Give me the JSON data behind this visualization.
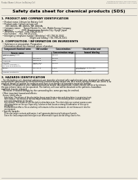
{
  "bg_color": "#f0ece0",
  "header_left": "Product Name: Lithium Ion Battery Cell",
  "header_right": "Substance Number: 990-049-00010\nEstablishment / Revision: Dec.7.2009",
  "main_title": "Safety data sheet for chemical products (SDS)",
  "section1_title": "1. PRODUCT AND COMPANY IDENTIFICATION",
  "section1_lines": [
    " • Product name: Lithium Ion Battery Cell",
    " • Product code: Cylindrical-type cell",
    "      ISR 18650U, ISR 18650L, ISR 18650A",
    " • Company name:     Sanyo Electric Co., Ltd., Mobile Energy Company",
    " • Address:              2001  Kamitosawa, Sumoto-City, Hyogo, Japan",
    " • Telephone number:   +81-799-26-4111",
    " • Fax number:   +81-799-26-4120",
    " • Emergency telephone number (Weekday) +81-799-26-3042",
    "                                              (Night and holiday) +81-799-26-3101"
  ],
  "section2_title": "2. COMPOSITION / INFORMATION ON INGREDIENTS",
  "section2_line1": " • Substance or preparation: Preparation",
  "section2_line2": " • Information about the chemical nature of product:",
  "col_headers": [
    "Component/chemical name",
    "CAS number",
    "Concentration /\nConcentration range",
    "Classification and\nhazard labeling"
  ],
  "sub_header": "Severe name",
  "rows": [
    [
      "Lithium cobalt oxide\n(LiMnxCoxNiO2)",
      "-",
      "30-40%",
      "-"
    ],
    [
      "Iron",
      "7439-89-6",
      "10-20%",
      "-"
    ],
    [
      "Aluminum",
      "7429-90-5",
      "2-8%",
      "-"
    ],
    [
      "Graphite\n(India in graphite-1)\n(All film in graphite-1)",
      "77592-42-5\n7782-42-5",
      "10-20%",
      "-"
    ],
    [
      "Copper",
      "7440-50-8",
      "5-15%",
      "Sensitization of the skin\ngroup No.2"
    ],
    [
      "Organic electrolyte",
      "-",
      "10-20%",
      "Inflammable liquid"
    ]
  ],
  "section3_title": "3. HAZARDS IDENTIFICATION",
  "section3_paras": [
    "   For this battery cell, chemical substances are stored in a hermetically sealed metal case, designed to withstand",
    "temperatures generated by electrochemical reaction during normal use. As a result, during normal use, there is no",
    "physical danger of ignition or explosion and there is no danger of hazardous materials leakage.",
    "   However, if exposed to a fire, added mechanical shocks, decompressed, violent electric action or by misuse,",
    "the gas release valve can be operated. The battery cell case will be dissolved at fire patterns, hazardous",
    "materials may be released.",
    "   Moreover, if heated strongly by the surrounding fire, some gas may be emitted."
  ],
  "sub1_bullet": " • Most important hazard and effects:",
  "sub1_lines": [
    "Human health effects:",
    "   Inhalation: The release of the electrolyte has an anesthesia action and stimulates in respiratory tract.",
    "   Skin contact: The release of the electrolyte stimulates a skin. The electrolyte skin contact causes a",
    "   sore and stimulation on the skin.",
    "   Eye contact: The release of the electrolyte stimulates eyes. The electrolyte eye contact causes a sore",
    "   and stimulation on the eye. Especially, substance that causes a strong inflammation of the eye is",
    "   contained.",
    "   Environmental effects: Since a battery cell remains in the environment, do not throw out it into the",
    "   environment."
  ],
  "sub2_bullet": " • Specific hazards:",
  "sub2_lines": [
    "   If the electrolyte contacts with water, it will generate detrimental hydrogen fluoride.",
    "   Since the lead-compound/electrolyte is an inflammable liquid, do not bring close to fire."
  ]
}
